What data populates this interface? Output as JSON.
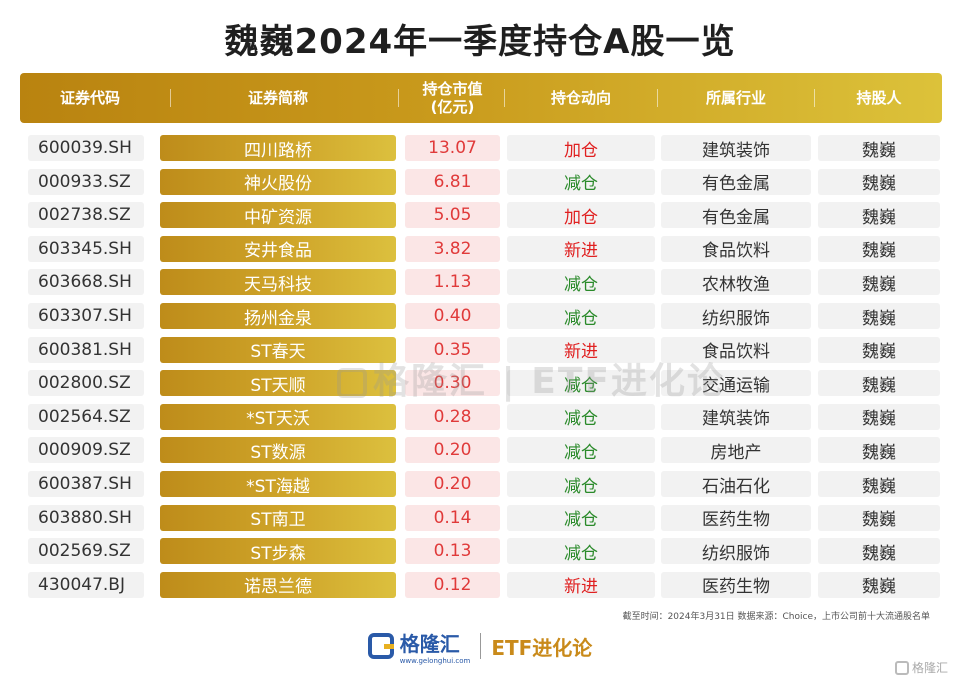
{
  "title": "魏巍2024年一季度持仓A股一览",
  "headers": {
    "code": "证券代码",
    "name": "证券简称",
    "value_line1": "持仓市值",
    "value_line2": "(亿元)",
    "direction": "持仓动向",
    "industry": "所属行业",
    "holder": "持股人"
  },
  "rows": [
    {
      "code": "600039.SH",
      "name": "四川路桥",
      "value": "13.07",
      "direction": "加仓",
      "industry": "建筑装饰",
      "holder": "魏巍"
    },
    {
      "code": "000933.SZ",
      "name": "神火股份",
      "value": "6.81",
      "direction": "减仓",
      "industry": "有色金属",
      "holder": "魏巍"
    },
    {
      "code": "002738.SZ",
      "name": "中矿资源",
      "value": "5.05",
      "direction": "加仓",
      "industry": "有色金属",
      "holder": "魏巍"
    },
    {
      "code": "603345.SH",
      "name": "安井食品",
      "value": "3.82",
      "direction": "新进",
      "industry": "食品饮料",
      "holder": "魏巍"
    },
    {
      "code": "603668.SH",
      "name": "天马科技",
      "value": "1.13",
      "direction": "减仓",
      "industry": "农林牧渔",
      "holder": "魏巍"
    },
    {
      "code": "603307.SH",
      "name": "扬州金泉",
      "value": "0.40",
      "direction": "减仓",
      "industry": "纺织服饰",
      "holder": "魏巍"
    },
    {
      "code": "600381.SH",
      "name": "ST春天",
      "value": "0.35",
      "direction": "新进",
      "industry": "食品饮料",
      "holder": "魏巍"
    },
    {
      "code": "002800.SZ",
      "name": "ST天顺",
      "value": "0.30",
      "direction": "减仓",
      "industry": "交通运输",
      "holder": "魏巍"
    },
    {
      "code": "002564.SZ",
      "name": "*ST天沃",
      "value": "0.28",
      "direction": "减仓",
      "industry": "建筑装饰",
      "holder": "魏巍"
    },
    {
      "code": "000909.SZ",
      "name": "ST数源",
      "value": "0.20",
      "direction": "减仓",
      "industry": "房地产",
      "holder": "魏巍"
    },
    {
      "code": "600387.SH",
      "name": "*ST海越",
      "value": "0.20",
      "direction": "减仓",
      "industry": "石油石化",
      "holder": "魏巍"
    },
    {
      "code": "603880.SH",
      "name": "ST南卫",
      "value": "0.14",
      "direction": "减仓",
      "industry": "医药生物",
      "holder": "魏巍"
    },
    {
      "code": "002569.SZ",
      "name": "ST步森",
      "value": "0.13",
      "direction": "减仓",
      "industry": "纺织服饰",
      "holder": "魏巍"
    },
    {
      "code": "430047.BJ",
      "name": "诺思兰德",
      "value": "0.12",
      "direction": "新进",
      "industry": "医药生物",
      "holder": "魏巍"
    }
  ],
  "source_note": "截至时间：2024年3月31日 数据来源：Choice，上市公司前十大流通股名单",
  "watermark": {
    "brand": "格隆汇",
    "etf": "ETF进化论"
  },
  "footer": {
    "brand": "格隆汇",
    "brand_url": "www.gelonghui.com",
    "etf": "ETF进化论"
  },
  "corner_badge": "格隆汇",
  "colors": {
    "gold": "#c99a1c",
    "add": "#e02020",
    "reduce": "#2a8a2a",
    "new": "#e02020",
    "value_red": "#e03a3a"
  }
}
